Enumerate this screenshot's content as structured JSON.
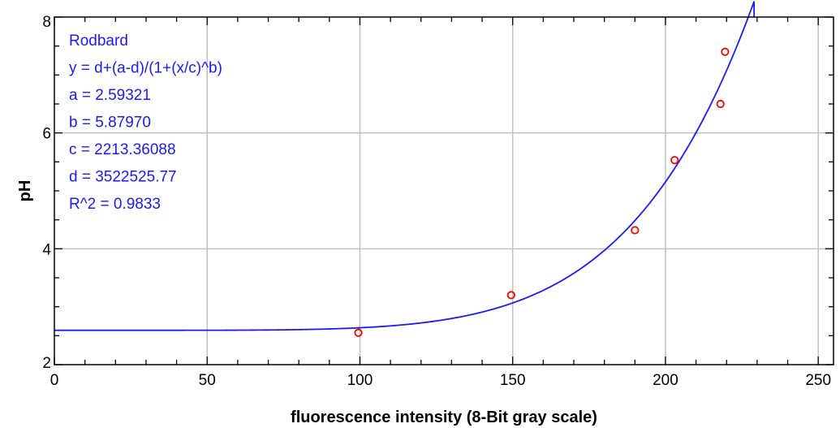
{
  "chart_data": {
    "type": "scatter",
    "xlabel": "fluorescence intensity (8-Bit gray scale)",
    "ylabel": "pH",
    "xlim": [
      0,
      255
    ],
    "ylim": [
      2,
      8
    ],
    "x_ticks": [
      0,
      50,
      100,
      150,
      200,
      250
    ],
    "y_ticks": [
      2,
      4,
      6,
      8
    ],
    "grid": true,
    "series": [
      {
        "kind": "points",
        "marker": "open-circle",
        "color": "#ff0000",
        "x": [
          99.5,
          149.5,
          190,
          203,
          218,
          219.5
        ],
        "y": [
          2.55,
          3.2,
          4.32,
          5.53,
          6.5,
          7.4
        ]
      },
      {
        "kind": "fit-line",
        "color": "#1a1aff",
        "model": "rodbard",
        "params": {
          "a": 2.59321,
          "b": 5.8797,
          "c": 2213.36088,
          "d": 3522525.77
        }
      }
    ],
    "annotation": {
      "color": "#1a1aff",
      "placement": "top-left",
      "lines": [
        "Rodbard",
        "y = d+(a-d)/(1+(x/c)^b)",
        "a = 2.59321",
        "b = 5.87970",
        "c = 2213.36088",
        "d = 3522525.77",
        "R^2 = 0.9833"
      ]
    }
  }
}
